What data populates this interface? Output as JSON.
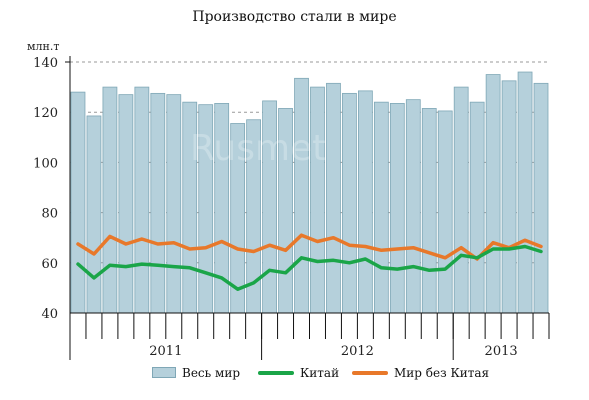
{
  "title": "Производство стали в мире",
  "watermark": "Rusmet",
  "chart_data": {
    "type": "bar",
    "title": "Производство стали в мире",
    "ylabel": "млн.т",
    "xlabel": "",
    "ylim": [
      40,
      140
    ],
    "yticks": [
      40,
      60,
      80,
      100,
      120,
      140
    ],
    "grid": true,
    "legend_position": "bottom",
    "colors": {
      "bar_fill": "#b5d0db",
      "bar_stroke": "#7fa7b6",
      "china": "#1aa548",
      "world_ex_china": "#e8782a"
    },
    "x": [
      "2011-01",
      "2011-02",
      "2011-03",
      "2011-04",
      "2011-05",
      "2011-06",
      "2011-07",
      "2011-08",
      "2011-09",
      "2011-10",
      "2011-11",
      "2011-12",
      "2012-01",
      "2012-02",
      "2012-03",
      "2012-04",
      "2012-05",
      "2012-06",
      "2012-07",
      "2012-08",
      "2012-09",
      "2012-10",
      "2012-11",
      "2012-12",
      "2013-01",
      "2013-02",
      "2013-03",
      "2013-04",
      "2013-05",
      "2013-06"
    ],
    "year_labels": [
      {
        "label": "2011",
        "start": 0,
        "end": 11
      },
      {
        "label": "2012",
        "start": 12,
        "end": 23
      },
      {
        "label": "2013",
        "start": 24,
        "end": 29
      }
    ],
    "series": [
      {
        "name": "Весь мир",
        "kind": "bar",
        "values": [
          128,
          118.5,
          130,
          127,
          130,
          127.5,
          127,
          124,
          123,
          123.5,
          115.5,
          117,
          124.5,
          121.5,
          133.5,
          130,
          131.5,
          127.5,
          128.5,
          124,
          123.5,
          125,
          121.5,
          120.5,
          130,
          124,
          135,
          132.5,
          136,
          131.5
        ]
      },
      {
        "name": "Китай",
        "kind": "line",
        "values": [
          59.5,
          54,
          59,
          58.5,
          59.5,
          59,
          58.5,
          58,
          56,
          54,
          49.5,
          52,
          57,
          56,
          62,
          60.5,
          61,
          60,
          61.5,
          58,
          57.5,
          58.5,
          57,
          57.5,
          63,
          62,
          65.5,
          65.5,
          66.5,
          64.5
        ]
      },
      {
        "name": "Мир без Китая",
        "kind": "line",
        "values": [
          67.5,
          63.5,
          70.5,
          67.5,
          69.5,
          67.5,
          68,
          65.5,
          66,
          68.5,
          65.5,
          64.5,
          67,
          65,
          71,
          68.5,
          70,
          67,
          66.5,
          65,
          65.5,
          66,
          64,
          62,
          66,
          61.5,
          68,
          66,
          69,
          66.5
        ]
      }
    ]
  }
}
